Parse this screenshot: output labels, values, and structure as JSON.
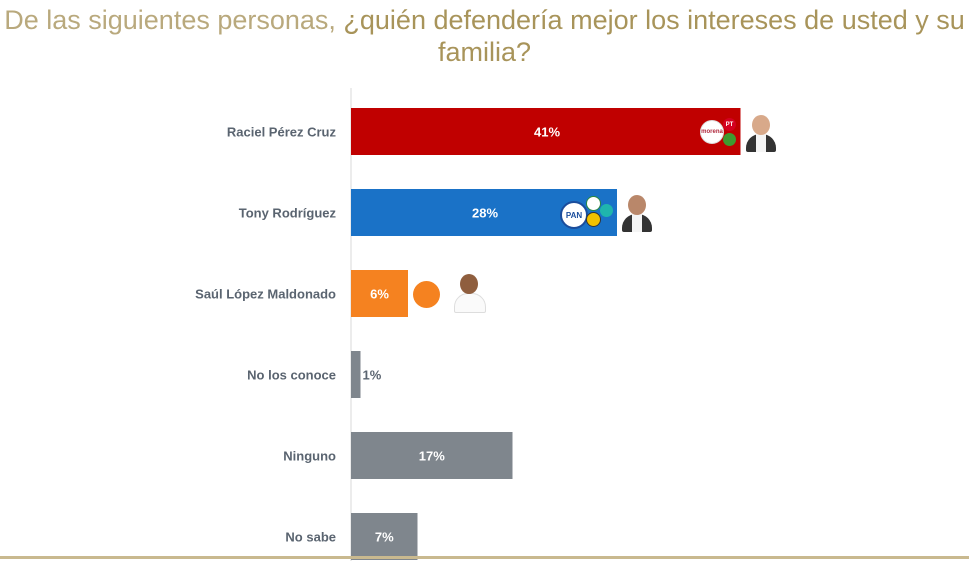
{
  "title_part1": "De las siguientes personas, ",
  "title_part2": "¿quién defendería mejor los intereses de usted y su",
  "title_part3": "familia?",
  "chart_data": {
    "type": "bar",
    "orientation": "horizontal",
    "categories": [
      "Raciel Pérez Cruz",
      "Tony Rodríguez",
      "Saúl López Maldonado",
      "No los conoce",
      "Ninguno",
      "No sabe"
    ],
    "values": [
      41,
      28,
      6,
      1,
      17,
      7
    ],
    "labels": [
      "41%",
      "28%",
      "6%",
      "1%",
      "17%",
      "7%"
    ],
    "colors": [
      "#c00000",
      "#1a72c7",
      "#f58220",
      "#7f868d",
      "#7f868d",
      "#7f868d"
    ],
    "xlim": [
      0,
      65
    ],
    "grid": false,
    "legend": "none"
  },
  "logos": {
    "raciel": [
      "morena",
      "PT",
      "PVEM"
    ],
    "tony": [
      "PAN",
      "PRI",
      "PRD",
      "PES"
    ],
    "saul": [
      "MC"
    ]
  },
  "logo_text": {
    "morena": "morena",
    "pt": "PT",
    "pan": "PAN"
  }
}
